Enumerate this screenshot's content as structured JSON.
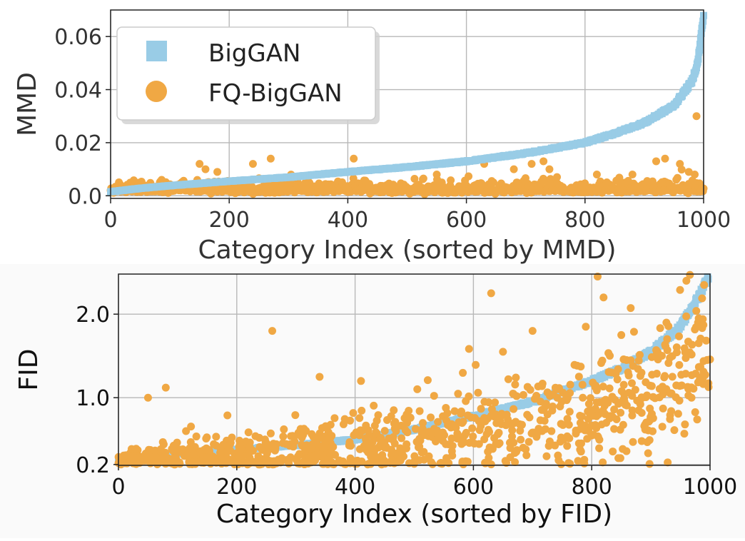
{
  "chart_data": [
    {
      "type": "scatter",
      "title": "",
      "xlabel": "Category Index (sorted by MMD)",
      "ylabel": "MMD",
      "xlim": [
        0,
        1000
      ],
      "ylim": [
        -0.001,
        0.07
      ],
      "x_ticks": [
        0,
        200,
        400,
        600,
        800,
        1000
      ],
      "x_tick_labels": [
        "0",
        "200",
        "400",
        "600",
        "800",
        "1000"
      ],
      "y_ticks": [
        0.0,
        0.02,
        0.04,
        0.06
      ],
      "y_tick_labels": [
        "0.0",
        "0.02",
        "0.04",
        "0.06"
      ],
      "grid": true,
      "legend": "upper-left",
      "series": [
        {
          "name": "BigGAN",
          "marker": "square",
          "color": "#99cce6",
          "generator": "sorted-curve",
          "n": 1000,
          "anchors_x": [
            0,
            50,
            100,
            200,
            300,
            400,
            500,
            600,
            700,
            800,
            850,
            900,
            950,
            980,
            990,
            1000
          ],
          "anchors_y": [
            0.0015,
            0.0028,
            0.0038,
            0.0055,
            0.007,
            0.009,
            0.0108,
            0.013,
            0.016,
            0.02,
            0.0235,
            0.0275,
            0.034,
            0.043,
            0.05,
            0.068
          ]
        },
        {
          "name": "FQ-BigGAN",
          "marker": "circle",
          "color": "#f0a844",
          "generator": "noisy-low",
          "n": 1000,
          "base": 0.0022,
          "spread": 0.0025,
          "outliers_x": [
            150,
            160,
            180,
            240,
            270,
            410,
            550,
            630,
            680,
            710,
            730,
            740,
            820,
            880,
            920,
            935,
            960,
            975,
            985,
            988
          ],
          "outliers_y": [
            0.012,
            0.01,
            0.009,
            0.012,
            0.014,
            0.014,
            0.008,
            0.012,
            0.01,
            0.012,
            0.013,
            0.01,
            0.008,
            0.008,
            0.013,
            0.014,
            0.012,
            0.009,
            0.008,
            0.03
          ]
        }
      ]
    },
    {
      "type": "scatter",
      "title": "",
      "xlabel": "Category Index (sorted by FID)",
      "ylabel": "FID",
      "xlim": [
        0,
        1000
      ],
      "ylim": [
        0.19,
        2.48
      ],
      "x_ticks": [
        0,
        200,
        400,
        600,
        800,
        1000
      ],
      "x_tick_labels": [
        "0",
        "200",
        "400",
        "600",
        "800",
        "1000"
      ],
      "y_ticks": [
        0.2,
        1.0,
        2.0
      ],
      "y_tick_labels": [
        "0.2",
        "1.0",
        "2.0"
      ],
      "grid": true,
      "legend": "none",
      "series": [
        {
          "name": "BigGAN",
          "marker": "square",
          "color": "#99cce6",
          "generator": "sorted-curve",
          "n": 1000,
          "anchors_x": [
            0,
            50,
            100,
            200,
            300,
            400,
            500,
            600,
            700,
            800,
            850,
            900,
            950,
            980,
            1000
          ],
          "anchors_y": [
            0.25,
            0.3,
            0.33,
            0.38,
            0.43,
            0.5,
            0.62,
            0.78,
            0.95,
            1.2,
            1.35,
            1.55,
            1.85,
            2.2,
            2.5
          ]
        },
        {
          "name": "FQ-BigGAN",
          "marker": "circle",
          "color": "#f0a844",
          "generator": "noisy-fid",
          "n": 1000,
          "outliers_x": [
            50,
            80,
            260,
            340,
            410,
            630,
            650,
            700,
            790,
            810,
            820,
            850,
            960,
            990
          ],
          "outliers_y": [
            1.0,
            1.12,
            1.8,
            1.25,
            1.2,
            2.25,
            1.55,
            1.8,
            1.85,
            2.45,
            2.2,
            1.75,
            2.4,
            2.35
          ]
        }
      ]
    }
  ]
}
